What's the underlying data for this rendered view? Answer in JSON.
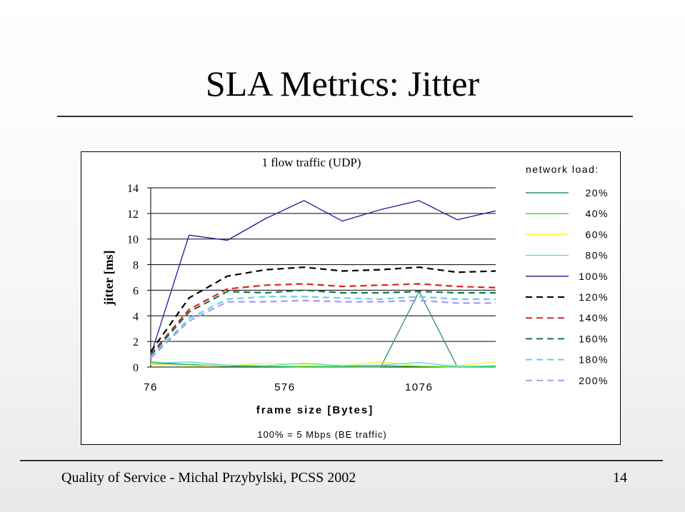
{
  "slide": {
    "title": "SLA Metrics: Jitter",
    "footer": "Quality of Service - Michal Przybylski, PCSS 2002",
    "page_number": "14"
  },
  "chart_data": {
    "type": "line",
    "title": "1 flow traffic (UDP)",
    "xlabel": "frame size [Bytes]",
    "ylabel": "jitter [ms]",
    "note": "100% = 5 Mbps (BE traffic)",
    "legend_title": "network load:",
    "legend_position": "right",
    "x_tick_labels": [
      "76",
      "576",
      "1076"
    ],
    "y_ticks": [
      0,
      2,
      4,
      6,
      8,
      10,
      12,
      14
    ],
    "ylim": [
      0,
      14
    ],
    "grid": "horizontal",
    "points": 10,
    "series": [
      {
        "name": "20%",
        "color": "#2e8b74",
        "dash": "solid",
        "values": [
          0.3,
          0.2,
          0.05,
          0.05,
          0.0,
          0.0,
          0.0,
          5.9,
          0.0,
          0.0
        ]
      },
      {
        "name": "40%",
        "color": "#33cc33",
        "dash": "solid",
        "values": [
          0.4,
          0.2,
          0.1,
          0.05,
          0.05,
          0.05,
          0.1,
          0.05,
          0.0,
          0.05
        ]
      },
      {
        "name": "60%",
        "color": "#ffee33",
        "dash": "solid",
        "values": [
          0.2,
          0.1,
          0.1,
          0.3,
          0.2,
          0.1,
          0.4,
          0.1,
          0.1,
          0.4
        ]
      },
      {
        "name": "80%",
        "color": "#55dddd",
        "dash": "solid",
        "values": [
          0.3,
          0.4,
          0.15,
          0.1,
          0.3,
          0.1,
          0.15,
          0.35,
          0.05,
          0.1
        ]
      },
      {
        "name": "100%",
        "color": "#1a1a99",
        "dash": "solid",
        "values": [
          0.9,
          10.3,
          9.9,
          11.6,
          13.0,
          11.4,
          12.3,
          13.0,
          11.5,
          12.2
        ]
      },
      {
        "name": "120%",
        "color": "#000000",
        "dash": "dashed",
        "values": [
          1.2,
          5.4,
          7.1,
          7.6,
          7.8,
          7.5,
          7.6,
          7.8,
          7.4,
          7.5
        ]
      },
      {
        "name": "140%",
        "color": "#dd2222",
        "dash": "dashed",
        "values": [
          1.0,
          4.5,
          6.1,
          6.4,
          6.5,
          6.3,
          6.4,
          6.5,
          6.3,
          6.2
        ]
      },
      {
        "name": "160%",
        "color": "#117744",
        "dash": "dashed",
        "values": [
          0.9,
          4.3,
          5.9,
          5.8,
          6.0,
          5.8,
          5.8,
          5.9,
          5.8,
          5.8
        ]
      },
      {
        "name": "180%",
        "color": "#66ccee",
        "dash": "dashed",
        "values": [
          0.8,
          3.8,
          5.3,
          5.5,
          5.5,
          5.4,
          5.3,
          5.5,
          5.3,
          5.3
        ]
      },
      {
        "name": "200%",
        "color": "#aa99ee",
        "dash": "dashed",
        "values": [
          0.7,
          3.6,
          5.1,
          5.1,
          5.2,
          5.1,
          5.1,
          5.2,
          5.0,
          5.0
        ]
      }
    ]
  }
}
